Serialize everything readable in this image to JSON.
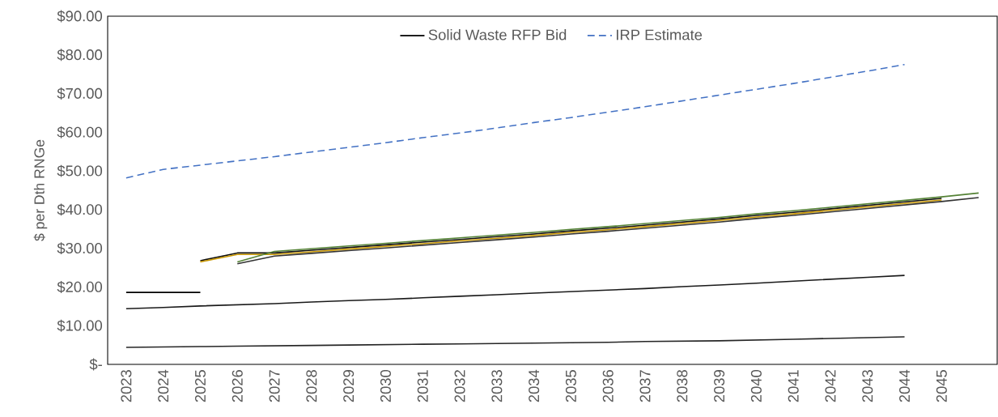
{
  "chart_data": {
    "type": "line",
    "ylabel": "$ per Dth RNGe",
    "categories": [
      "2023",
      "2024",
      "2025",
      "2026",
      "2027",
      "2028",
      "2029",
      "2030",
      "2031",
      "2032",
      "2033",
      "2034",
      "2035",
      "2036",
      "2037",
      "2038",
      "2039",
      "2040",
      "2041",
      "2042",
      "2043",
      "2044",
      "2045",
      null
    ],
    "series": [
      {
        "name": "Solid Waste RFP Bid",
        "color": "#000000",
        "values": [
          18.6,
          18.6,
          18.6,
          null,
          null,
          null,
          null,
          null,
          null,
          null,
          null,
          null,
          null,
          null,
          null,
          null,
          null,
          null,
          null,
          null,
          null,
          null,
          null,
          null
        ]
      },
      {
        "name": "IRP Estimate",
        "color": "#4472c4",
        "line_style": "dashed",
        "values": [
          48.2,
          50.4,
          51.5,
          52.6,
          53.7,
          54.9,
          56.1,
          57.3,
          58.6,
          59.8,
          61.1,
          62.5,
          63.8,
          65.2,
          66.6,
          68.1,
          69.6,
          71.1,
          72.6,
          74.2,
          75.8,
          77.5,
          null,
          null
        ]
      },
      {
        "color": "#1a1a1a",
        "values": [
          14.4,
          14.7,
          15.1,
          15.4,
          15.7,
          16.1,
          16.5,
          16.8,
          17.2,
          17.6,
          18.0,
          18.4,
          18.8,
          19.2,
          19.6,
          20.1,
          20.5,
          21.0,
          21.5,
          22.0,
          22.5,
          23.0,
          null,
          null
        ]
      },
      {
        "color": "#262626",
        "values": [
          4.4,
          4.5,
          4.6,
          4.7,
          4.8,
          4.9,
          5.0,
          5.1,
          5.2,
          5.3,
          5.4,
          5.5,
          5.6,
          5.7,
          5.9,
          6.0,
          6.1,
          6.3,
          6.5,
          6.7,
          6.9,
          7.1,
          null,
          null
        ]
      },
      {
        "color": "#0d0d0d",
        "values": [
          null,
          null,
          26.8,
          28.8,
          28.8,
          29.5,
          30.2,
          30.9,
          31.6,
          32.3,
          33.0,
          33.7,
          34.5,
          35.2,
          36.0,
          36.8,
          37.6,
          38.5,
          39.3,
          40.2,
          41.1,
          42.0,
          42.9,
          null
        ]
      },
      {
        "color": "#c89600",
        "values": [
          null,
          null,
          26.5,
          28.4,
          28.4,
          29.1,
          29.8,
          30.5,
          31.2,
          31.9,
          32.6,
          33.3,
          34.1,
          34.8,
          35.6,
          36.4,
          37.2,
          38.1,
          38.9,
          39.8,
          40.7,
          41.6,
          42.5,
          null
        ]
      },
      {
        "color": "#333333",
        "values": [
          null,
          null,
          null,
          26.0,
          28.0,
          28.7,
          29.4,
          30.1,
          30.8,
          31.5,
          32.2,
          32.9,
          33.7,
          34.4,
          35.2,
          36.0,
          36.8,
          37.7,
          38.5,
          39.4,
          40.3,
          41.2,
          42.1,
          43.1
        ]
      },
      {
        "color": "#548235",
        "values": [
          null,
          null,
          null,
          26.5,
          29.2,
          29.9,
          30.6,
          31.3,
          32.0,
          32.7,
          33.4,
          34.1,
          34.9,
          35.6,
          36.4,
          37.2,
          38.0,
          38.9,
          39.7,
          40.6,
          41.5,
          42.4,
          43.3,
          44.3
        ]
      }
    ],
    "ylim": [
      0,
      90
    ],
    "yticks": [
      {
        "value": 0,
        "label": "$-"
      },
      {
        "value": 10,
        "label": "$10.00"
      },
      {
        "value": 20,
        "label": "$20.00"
      },
      {
        "value": 30,
        "label": "$30.00"
      },
      {
        "value": 40,
        "label": "$40.00"
      },
      {
        "value": 50,
        "label": "$50.00"
      },
      {
        "value": 60,
        "label": "$60.00"
      },
      {
        "value": 70,
        "label": "$70.00"
      },
      {
        "value": 80,
        "label": "$80.00"
      },
      {
        "value": 90,
        "label": "$90.00"
      }
    ],
    "grid": false,
    "legend": "top",
    "marker": "none"
  }
}
